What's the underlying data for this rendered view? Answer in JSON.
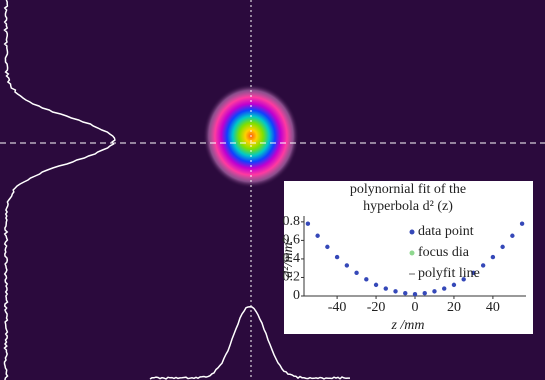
{
  "chart_data": {
    "type": "scatter",
    "title": [
      "polynornial fit of the",
      "hyperbola d² (z)"
    ],
    "x_label": "z /mm",
    "y_label": "d²/mm²",
    "xlim": [
      -57,
      57
    ],
    "ylim": [
      0,
      0.82
    ],
    "xticks": [
      -40,
      -20,
      0,
      20,
      40
    ],
    "yticks": [
      0,
      0.2,
      0.4,
      0.6,
      0.8
    ],
    "series": [
      {
        "name": "data point",
        "color": "#3548b8",
        "x": [
          -55,
          -50,
          -45,
          -40,
          -35,
          -30,
          -25,
          -20,
          -15,
          -10,
          -5,
          0,
          5,
          10,
          15,
          20,
          25,
          30,
          35,
          40,
          45,
          50,
          55
        ],
        "values": [
          0.78,
          0.65,
          0.53,
          0.42,
          0.33,
          0.25,
          0.18,
          0.12,
          0.08,
          0.05,
          0.03,
          0.02,
          0.03,
          0.05,
          0.08,
          0.12,
          0.18,
          0.25,
          0.33,
          0.42,
          0.53,
          0.65,
          0.78
        ]
      }
    ],
    "legend_items": [
      {
        "name": "focus dia",
        "color": "#8fd88f"
      },
      {
        "name": "polyfit line",
        "color": "#999999"
      }
    ],
    "legend": "upper right"
  }
}
